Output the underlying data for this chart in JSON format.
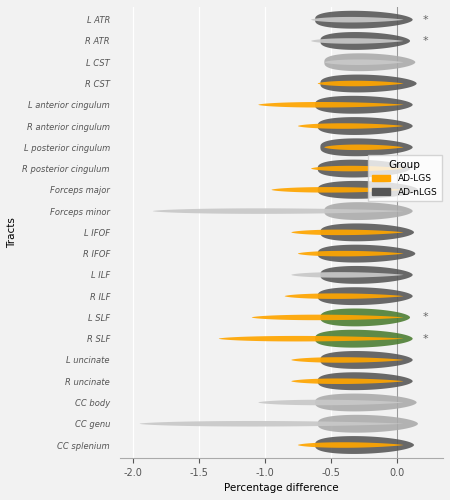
{
  "tracts": [
    "L ATR",
    "R ATR",
    "L CST",
    "R CST",
    "L anterior cingulum",
    "R anterior cingulum",
    "L posterior cingulum",
    "R posterior cingulum",
    "Forceps major",
    "Forceps minor",
    "L IFOF",
    "R IFOF",
    "L ILF",
    "R ILF",
    "L SLF",
    "R SLF",
    "L uncinate",
    "R uncinate",
    "CC body",
    "CC genu",
    "CC splenium"
  ],
  "ad_lgs_right": [
    0.05,
    0.05,
    0.05,
    0.05,
    0.05,
    0.05,
    0.05,
    0.05,
    0.05,
    0.05,
    0.05,
    0.05,
    0.05,
    0.05,
    0.05,
    0.05,
    0.05,
    0.05,
    0.05,
    0.05,
    0.05
  ],
  "ad_lgs_left": [
    -0.65,
    -0.65,
    -0.55,
    -0.6,
    -1.05,
    -0.75,
    -0.55,
    -0.65,
    -0.95,
    -1.85,
    -0.8,
    -0.75,
    -0.8,
    -0.85,
    -1.1,
    -1.35,
    -0.8,
    -0.8,
    -1.05,
    -1.95,
    -0.75
  ],
  "ad_lgs_sig": [
    false,
    false,
    false,
    true,
    true,
    true,
    true,
    true,
    true,
    false,
    true,
    true,
    false,
    true,
    true,
    true,
    true,
    true,
    false,
    false,
    true
  ],
  "ad_nlgs_right": [
    0.12,
    0.1,
    0.14,
    0.15,
    0.12,
    0.12,
    0.12,
    0.1,
    0.16,
    0.12,
    0.13,
    0.14,
    0.12,
    0.12,
    0.1,
    0.12,
    0.12,
    0.12,
    0.15,
    0.16,
    0.13
  ],
  "ad_nlgs_left": [
    -0.62,
    -0.58,
    -0.55,
    -0.58,
    -0.62,
    -0.6,
    -0.58,
    -0.6,
    -0.6,
    -0.55,
    -0.58,
    -0.6,
    -0.58,
    -0.6,
    -0.58,
    -0.62,
    -0.58,
    -0.6,
    -0.62,
    -0.6,
    -0.62
  ],
  "ad_nlgs_sig": [
    true,
    true,
    false,
    true,
    true,
    true,
    true,
    true,
    true,
    false,
    true,
    true,
    true,
    true,
    true,
    true,
    true,
    true,
    false,
    false,
    true
  ],
  "between_group_sig": [
    true,
    true,
    false,
    false,
    false,
    false,
    false,
    false,
    false,
    false,
    false,
    false,
    false,
    false,
    true,
    true,
    false,
    false,
    false,
    false,
    false
  ],
  "lslf_nlgs_color": "#4A7C2F",
  "rslf_nlgs_color": "#4A7C2F",
  "xlim": [
    -2.1,
    0.35
  ],
  "xticks": [
    -2.0,
    -1.5,
    -1.0,
    -0.5,
    0.0
  ],
  "xticklabels": [
    "-2.0",
    "-1.5",
    "-1.0",
    "-0.5",
    "0.0"
  ],
  "xlabel": "Percentage difference",
  "ylabel": "Tracts",
  "color_adlgs_sig": "#FFA500",
  "color_adlgs_nonsig": "#C8C8C8",
  "color_adnlgs_sig": "#555555",
  "color_adnlgs_nonsig": "#AAAAAA",
  "color_adnlgs_green": "#4A7C2F",
  "background_color": "#F2F2F2",
  "grid_color": "#FFFFFF"
}
